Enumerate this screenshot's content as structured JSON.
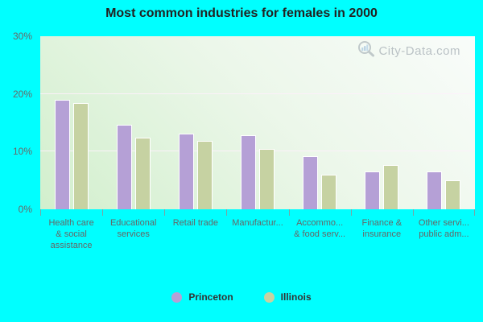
{
  "title": "Most common industries for females in 2000",
  "watermark": "City-Data.com",
  "chart_data": {
    "type": "bar",
    "title": "Most common industries for females in 2000",
    "categories": [
      "Health care & social assistance",
      "Educational services",
      "Retail trade",
      "Manufactur...",
      "Accommo... & food serv...",
      "Finance & insurance",
      "Other servi... public adm..."
    ],
    "category_display_lines": [
      [
        "Health care",
        "& social",
        "assistance"
      ],
      [
        "Educational",
        "services"
      ],
      [
        "Retail trade"
      ],
      [
        "Manufactur..."
      ],
      [
        "Accommo...",
        "& food serv..."
      ],
      [
        "Finance &",
        "insurance"
      ],
      [
        "Other servi...",
        "public adm..."
      ]
    ],
    "series": [
      {
        "name": "Princeton",
        "color": "#b5a0d6",
        "values": [
          19.0,
          14.7,
          13.1,
          12.9,
          9.2,
          6.6,
          6.6
        ]
      },
      {
        "name": "Illinois",
        "color": "#c6d2a2",
        "values": [
          18.4,
          12.4,
          11.8,
          10.5,
          6.0,
          7.7,
          5.0
        ]
      }
    ],
    "ylim": [
      0,
      30
    ],
    "yticks": [
      0,
      10,
      20,
      30
    ],
    "ytick_labels": [
      "0%",
      "10%",
      "20%",
      "30%"
    ],
    "grid": true,
    "gridlines_at": [
      10,
      20
    ],
    "legend_position": "bottom",
    "colors": {
      "background": "#00ffff",
      "plot_gradient_light": "#f9fcfa",
      "plot_gradient_dark": "#d2efcd",
      "gridline": "#fcf0fa",
      "tick": "#7da2a2",
      "axis_label": "#666666",
      "title_text": "#222222",
      "watermark_text": "#8a949e"
    }
  }
}
